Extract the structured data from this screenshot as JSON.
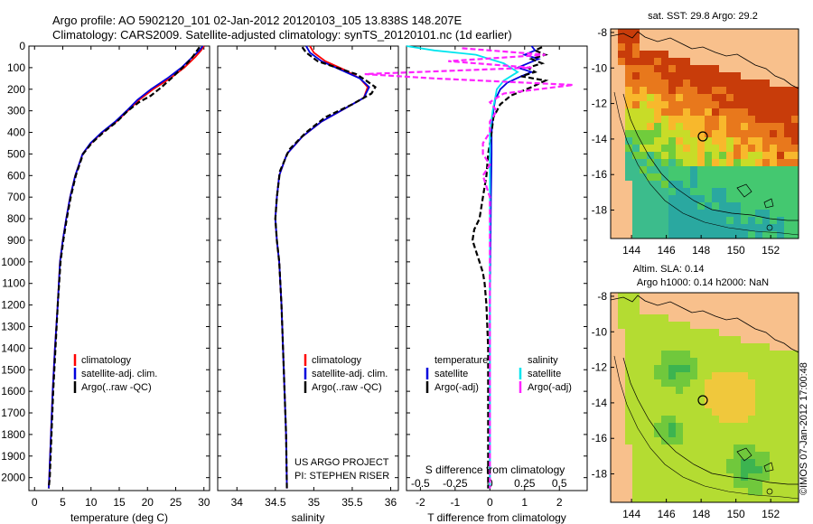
{
  "header": {
    "line1": "Argo profile: AO 5902120_101 02-Jan-2012 20120103_105 13.838S 148.207E",
    "line2": "Climatology: CARS2009. Satellite-adjusted climatology: synTS_20120101.nc (1d earlier)"
  },
  "credit": "US ARGO PROJECT",
  "pi": "PI: STEPHEN RISER",
  "watermark": "©IMOS 07-Jan-2012 17:00:48",
  "colors": {
    "climatology": "#ff0000",
    "satellite": "#0000dd",
    "argo": "#000000",
    "salinity_satellite": "#00e5ee",
    "salinity_argo": "#ff22ff",
    "land": "#f8c08c"
  },
  "chart_data": [
    {
      "type": "line",
      "id": "temperature",
      "xlabel": "temperature (deg C)",
      "xlim": [
        -1,
        31
      ],
      "ylim": [
        0,
        2060
      ],
      "y_inverted": true,
      "xticks": [
        0,
        5,
        10,
        15,
        20,
        25,
        30
      ],
      "yticks": [
        0,
        100,
        200,
        300,
        400,
        500,
        600,
        700,
        800,
        900,
        1000,
        1100,
        1200,
        1300,
        1400,
        1500,
        1600,
        1700,
        1800,
        1900,
        2000
      ],
      "legend": [
        "climatology",
        "satellite-adj. clim.",
        "Argo(..raw -QC)"
      ],
      "series": [
        {
          "name": "climatology",
          "color": "#ff0000",
          "style": "solid",
          "x": [
            30.0,
            29.5,
            28.5,
            26.5,
            24.0,
            21.0,
            18.5,
            16.5,
            14.5,
            12.0,
            10.0,
            8.5,
            7.2,
            6.3,
            5.6,
            5.0,
            4.5,
            4.1,
            3.6,
            3.2,
            2.9,
            2.6,
            2.5
          ],
          "y": [
            0,
            20,
            50,
            100,
            150,
            200,
            250,
            300,
            350,
            400,
            450,
            500,
            600,
            700,
            800,
            900,
            1000,
            1200,
            1400,
            1600,
            1800,
            2000,
            2050
          ]
        },
        {
          "name": "satellite-adj. clim.",
          "color": "#0000dd",
          "style": "solid",
          "x": [
            29.8,
            29.2,
            28.0,
            26.0,
            23.5,
            20.6,
            18.2,
            16.3,
            14.3,
            11.9,
            9.9,
            8.5,
            7.2,
            6.3,
            5.6,
            5.0,
            4.5,
            4.1,
            3.6,
            3.2,
            2.9,
            2.6,
            2.5
          ],
          "y": [
            0,
            20,
            50,
            100,
            150,
            200,
            250,
            300,
            350,
            400,
            450,
            500,
            600,
            700,
            800,
            900,
            1000,
            1200,
            1400,
            1600,
            1800,
            2000,
            2050
          ]
        },
        {
          "name": "Argo(..raw -QC)",
          "color": "#000000",
          "style": "dashed",
          "x": [
            29.2,
            28.8,
            28.0,
            27.0,
            25.8,
            24.2,
            22.5,
            20.6,
            18.5,
            16.5,
            14.6,
            12.2,
            10.1,
            8.6,
            7.3,
            6.4,
            5.7,
            5.1,
            4.6,
            4.1,
            3.7,
            3.3,
            3.0,
            2.7,
            2.5
          ],
          "y": [
            5,
            20,
            50,
            80,
            110,
            150,
            190,
            230,
            260,
            300,
            350,
            400,
            450,
            500,
            600,
            700,
            800,
            900,
            1000,
            1200,
            1400,
            1600,
            1800,
            2000,
            2050
          ]
        }
      ]
    },
    {
      "type": "line",
      "id": "salinity",
      "xlabel": "salinity",
      "xlim": [
        33.75,
        36.1
      ],
      "ylim": [
        0,
        2060
      ],
      "y_inverted": true,
      "xticks": [
        34,
        34.5,
        35,
        35.5,
        36
      ],
      "legend": [
        "climatology",
        "satellite-adj. clim.",
        "Argo(..raw -QC)"
      ],
      "series": [
        {
          "name": "climatology",
          "color": "#ff0000",
          "style": "solid",
          "x": [
            34.95,
            35.0,
            35.15,
            35.4,
            35.6,
            35.7,
            35.65,
            35.4,
            35.1,
            34.85,
            34.65,
            34.55,
            34.52,
            34.5,
            34.52,
            34.55,
            34.58,
            34.6,
            34.62,
            34.64,
            34.65
          ],
          "y": [
            0,
            30,
            70,
            110,
            150,
            190,
            240,
            290,
            350,
            420,
            500,
            600,
            700,
            800,
            900,
            1000,
            1200,
            1400,
            1600,
            1800,
            2050
          ]
        },
        {
          "name": "satellite-adj. clim.",
          "color": "#0000dd",
          "style": "solid",
          "x": [
            34.9,
            34.95,
            35.1,
            35.35,
            35.6,
            35.72,
            35.65,
            35.4,
            35.1,
            34.85,
            34.65,
            34.55,
            34.52,
            34.5,
            34.52,
            34.55,
            34.58,
            34.6,
            34.62,
            34.64,
            34.65
          ],
          "y": [
            0,
            30,
            70,
            110,
            150,
            190,
            240,
            290,
            350,
            420,
            500,
            600,
            700,
            800,
            900,
            1000,
            1200,
            1400,
            1600,
            1800,
            2050
          ]
        },
        {
          "name": "Argo(..raw -QC)",
          "color": "#000000",
          "style": "dashed",
          "x": [
            34.85,
            34.9,
            35.05,
            35.3,
            35.55,
            35.68,
            35.8,
            35.75,
            35.5,
            35.15,
            34.9,
            34.68,
            34.56,
            34.52,
            34.5,
            34.52,
            34.55,
            34.58,
            34.6,
            34.62,
            34.64,
            34.65
          ],
          "y": [
            5,
            30,
            70,
            100,
            130,
            160,
            190,
            220,
            270,
            330,
            400,
            480,
            580,
            700,
            800,
            900,
            1000,
            1200,
            1400,
            1600,
            1800,
            2050
          ]
        }
      ]
    },
    {
      "type": "line",
      "id": "difference",
      "xlabel": "T difference from climatology",
      "xlabel2": "S difference from climatology",
      "xlim": [
        -2.4,
        2.8
      ],
      "ylim": [
        0,
        2060
      ],
      "y_inverted": true,
      "xticks": [
        -2,
        -1,
        0,
        1,
        2
      ],
      "xticks_top": [
        -0.5,
        -0.25,
        0,
        0.25,
        0.5
      ],
      "legend_temperature_title": "temperature",
      "legend_salinity_title": "salinity",
      "legend": [
        {
          "group": "temperature",
          "label": "satellite",
          "color": "#0000dd"
        },
        {
          "group": "temperature",
          "label": "Argo(-adj)",
          "color": "#000000"
        },
        {
          "group": "salinity",
          "label": "satellite",
          "color": "#00e5ee"
        },
        {
          "group": "salinity",
          "label": "Argo(-adj)",
          "color": "#ff22ff"
        }
      ],
      "series": [
        {
          "name": "temperature satellite",
          "color": "#0000dd",
          "style": "solid",
          "x": [
            1.2,
            1.3,
            1.0,
            1.4,
            1.1,
            0.8,
            1.2,
            0.9,
            0.5,
            0.3,
            0.15,
            0.1,
            0.05,
            0.05,
            0.03,
            0.02,
            0.0,
            0.0,
            0.0
          ],
          "y": [
            0,
            20,
            40,
            60,
            80,
            100,
            120,
            140,
            170,
            200,
            250,
            300,
            400,
            500,
            700,
            900,
            1200,
            1600,
            2050
          ]
        },
        {
          "name": "temperature Argo(-adj)",
          "color": "#000000",
          "style": "dashed",
          "x": [
            1.5,
            1.3,
            1.6,
            1.2,
            1.5,
            1.1,
            1.3,
            0.9,
            1.6,
            1.2,
            0.6,
            0.3,
            0.1,
            0.05,
            -0.05,
            -0.1,
            -0.2,
            -0.3,
            -0.45,
            -0.5,
            -0.4,
            -0.3,
            -0.2,
            -0.15,
            -0.1,
            -0.05,
            -0.05,
            -0.05,
            -0.05
          ],
          "y": [
            5,
            20,
            40,
            60,
            80,
            100,
            120,
            140,
            160,
            190,
            230,
            270,
            330,
            400,
            500,
            600,
            700,
            800,
            850,
            900,
            950,
            1000,
            1050,
            1100,
            1200,
            1400,
            1600,
            1800,
            2050
          ]
        },
        {
          "name": "salinity satellite",
          "color": "#00e5ee",
          "style": "solid",
          "x": [
            -0.6,
            -0.4,
            -0.1,
            0.1,
            0.2,
            0.1,
            0.05,
            0.02,
            0.0,
            0.0,
            0.0,
            0.0,
            0.0,
            0.0
          ],
          "y": [
            0,
            20,
            40,
            80,
            120,
            160,
            200,
            300,
            400,
            600,
            900,
            1300,
            1700,
            2050
          ]
        },
        {
          "name": "salinity Argo(-adj)",
          "color": "#ff22ff",
          "style": "dashed",
          "x": [
            -0.2,
            0.4,
            -0.3,
            0.3,
            -0.9,
            -0.4,
            0.6,
            0.1,
            0.0,
            0.05,
            0.0,
            0.0,
            -0.05,
            -0.05,
            0.0,
            -0.05,
            0.0,
            0.0,
            0.0,
            0.0,
            0.0
          ],
          "y": [
            10,
            40,
            70,
            100,
            130,
            150,
            180,
            220,
            260,
            300,
            350,
            400,
            450,
            500,
            550,
            600,
            700,
            900,
            1300,
            1700,
            2050
          ]
        }
      ]
    },
    {
      "type": "heatmap",
      "id": "sst_map",
      "title": "sat. SST: 29.8  Argo: 29.2",
      "xticks": [
        144,
        146,
        148,
        150,
        152
      ],
      "yticks": [
        -8,
        -10,
        -12,
        -14,
        -16,
        -18
      ],
      "xlim": [
        142.8,
        153.6
      ],
      "ylim": [
        -19.6,
        -7.8
      ],
      "argo_position": [
        148.207,
        -13.838
      ]
    },
    {
      "type": "heatmap",
      "id": "sla_map",
      "title": "Altim. SLA: 0.14",
      "subtitle": "Argo h1000: 0.14 h2000: NaN",
      "xticks": [
        144,
        146,
        148,
        150,
        152
      ],
      "yticks": [
        -8,
        -10,
        -12,
        -14,
        -16,
        -18
      ],
      "xlim": [
        142.8,
        153.6
      ],
      "ylim": [
        -19.6,
        -7.8
      ],
      "argo_position": [
        148.207,
        -13.838
      ]
    }
  ]
}
